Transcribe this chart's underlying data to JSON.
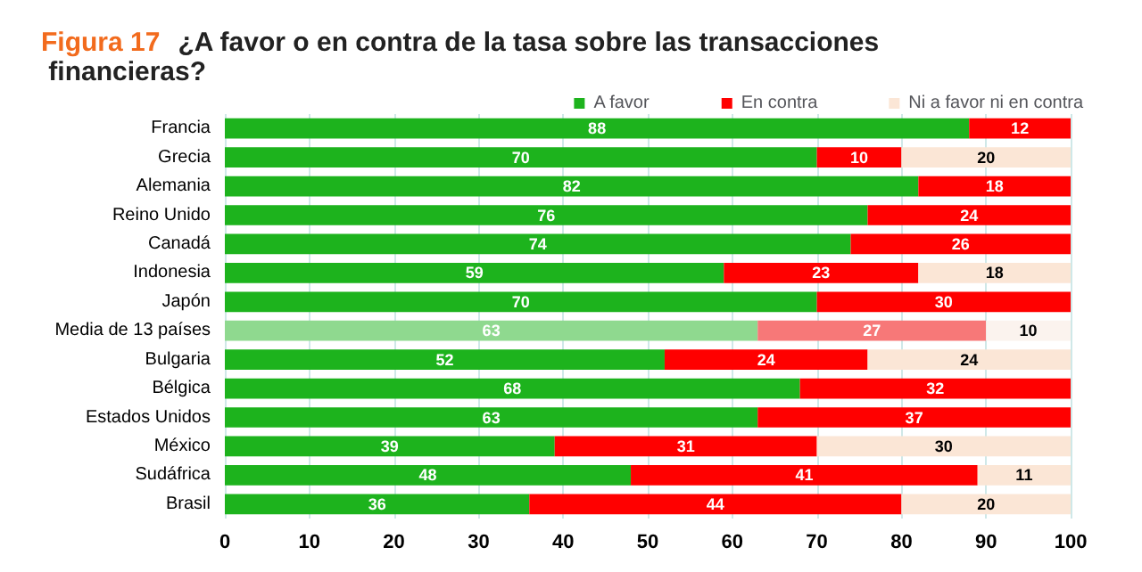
{
  "chart_data": {
    "type": "bar",
    "orientation": "horizontal",
    "stacked": true,
    "data_labels": true,
    "grid": "x",
    "legend": "top",
    "title": "Figura 17 ¿A favor o en contra de la tasa sobre las transacciones financieras?",
    "categories": [
      "Francia",
      "Grecia",
      "Alemania",
      "Reino Unido",
      "Canadá",
      "Indonesia",
      "Japón",
      "Media de 13 países",
      "Bulgaria",
      "Bélgica",
      "Estados Unidos",
      "México",
      "Sudáfrica",
      "Brasil"
    ],
    "series": [
      {
        "name": "A favor",
        "color": "#1db31d",
        "colors": [
          "#1db31d",
          "#1db31d",
          "#1db31d",
          "#1db31d",
          "#1db31d",
          "#1db31d",
          "#1db31d",
          "#8fd98f",
          "#1db31d",
          "#1db31d",
          "#1db31d",
          "#1db31d",
          "#1db31d",
          "#1db31d"
        ],
        "values": [
          88,
          70,
          82,
          76,
          74,
          59,
          70,
          63,
          52,
          68,
          63,
          39,
          48,
          36
        ]
      },
      {
        "name": "En contra",
        "color": "#ff0000",
        "colors": [
          "#ff0000",
          "#ff0000",
          "#ff0000",
          "#ff0000",
          "#ff0000",
          "#ff0000",
          "#ff0000",
          "#f77878",
          "#ff0000",
          "#ff0000",
          "#ff0000",
          "#ff0000",
          "#ff0000",
          "#ff0000"
        ],
        "values": [
          12,
          10,
          18,
          24,
          26,
          23,
          30,
          27,
          24,
          32,
          37,
          31,
          41,
          44
        ]
      },
      {
        "name": "Ni a favor ni en contra",
        "color": "#fbe6d6",
        "colors": [
          "#fbe6d6",
          "#fbe6d6",
          "#fbe6d6",
          "#fbe6d6",
          "#fbe6d6",
          "#fbe6d6",
          "#fbe6d6",
          "#fbf3ee",
          "#fbe6d6",
          "#fbe6d6",
          "#fbe6d6",
          "#fbe6d6",
          "#fbe6d6",
          "#fbe6d6"
        ],
        "values": [
          null,
          20,
          null,
          null,
          null,
          18,
          null,
          10,
          24,
          null,
          null,
          30,
          11,
          20
        ]
      }
    ],
    "xlim": [
      0,
      100
    ],
    "xticks": [
      0,
      10,
      20,
      30,
      40,
      50,
      60,
      70,
      80,
      90,
      100
    ]
  }
}
